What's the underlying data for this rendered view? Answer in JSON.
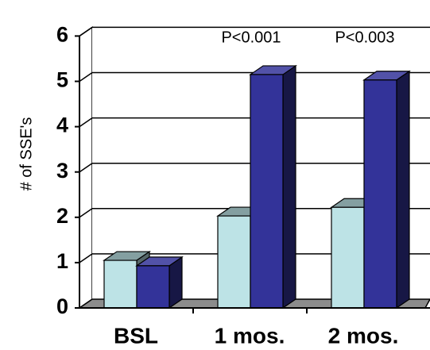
{
  "chart_data": {
    "type": "bar",
    "categories": [
      "BSL",
      "1 mos.",
      "2 mos."
    ],
    "series": [
      {
        "values": [
          1.05,
          2.03,
          2.22
        ],
        "color": "#bde3e6"
      },
      {
        "values": [
          0.93,
          5.15,
          5.03
        ],
        "color": "#333399"
      }
    ],
    "ylabel": "# of SSE's",
    "ylim": [
      0,
      6
    ],
    "yticks": [
      "0",
      "1",
      "2",
      "3",
      "4",
      "5",
      "6"
    ],
    "grid": true,
    "annotations": [
      {
        "category": "1 mos.",
        "text": "P<0.001"
      },
      {
        "category": "2 mos.",
        "text": "P<0.003"
      }
    ]
  }
}
